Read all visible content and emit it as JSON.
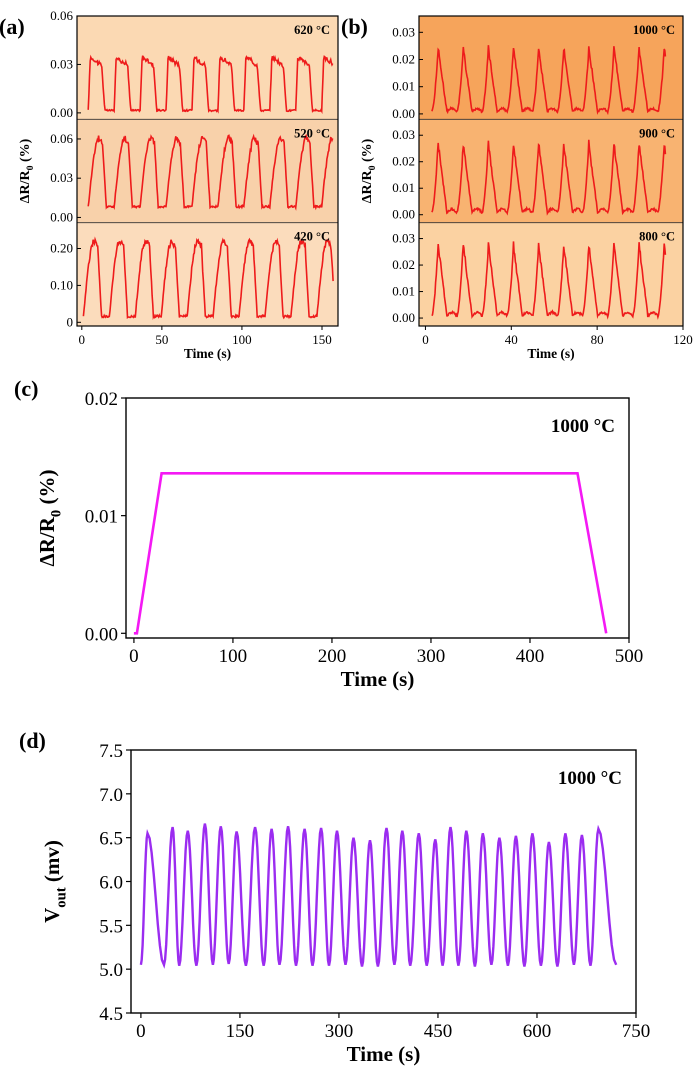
{
  "chart_data": [
    {
      "panel_label": "(a)",
      "type": "line",
      "xlabel": "Time (s)",
      "ylabel": "ΔR/R0 (%)",
      "xlim": [
        -3,
        160
      ],
      "x_ticks": [
        0,
        50,
        100,
        150
      ],
      "line_color": "#ee1b1b",
      "subplots": [
        {
          "annotation": "620 °C",
          "bg": "#fbd9b3",
          "ylim": [
            -0.004,
            0.06
          ],
          "y_ticks": [
            0.0,
            0.03,
            0.06
          ],
          "y_tick_labels": [
            "0.00",
            "0.03",
            "0.06"
          ],
          "wave": {
            "start": 4,
            "end": 157,
            "period": 16.2,
            "baseline": 0.0015,
            "peak": 0.036,
            "shape": "pulse"
          }
        },
        {
          "annotation": "520 °C",
          "bg": "#f8d1aa",
          "ylim": [
            -0.004,
            0.075
          ],
          "y_ticks": [
            0.0,
            0.03,
            0.06
          ],
          "y_tick_labels": [
            "0.00",
            "0.03",
            "0.06"
          ],
          "wave": {
            "start": 4,
            "end": 157,
            "period": 16.2,
            "baseline": 0.008,
            "peak": 0.063,
            "shape": "round"
          }
        },
        {
          "annotation": "420 °C",
          "bg": "#fbdcbc",
          "ylim": [
            -0.01,
            0.27
          ],
          "y_ticks": [
            0,
            0.1,
            0.2
          ],
          "y_tick_labels": [
            "0",
            "0.10",
            "0.20"
          ],
          "wave": {
            "start": 1,
            "end": 157,
            "period": 16.2,
            "baseline": 0.015,
            "peak": 0.23,
            "shape": "round"
          }
        }
      ]
    },
    {
      "panel_label": "(b)",
      "type": "line",
      "xlabel": "Time (s)",
      "ylabel": "ΔR/R0 (%)",
      "xlim": [
        -3,
        120
      ],
      "x_ticks": [
        0,
        40,
        80,
        120
      ],
      "line_color": "#ee1b1b",
      "subplots": [
        {
          "annotation": "1000 °C",
          "bg": "#f6a45b",
          "ylim": [
            -0.002,
            0.036
          ],
          "y_ticks": [
            0.0,
            0.01,
            0.02,
            0.03
          ],
          "y_tick_labels": [
            "0.00",
            "0.01",
            "0.02",
            "0.03"
          ],
          "wave": {
            "start": 3,
            "end": 112,
            "period": 11.7,
            "baseline": 0.0008,
            "peak": 0.025,
            "shape": "sharp"
          }
        },
        {
          "annotation": "900 °C",
          "bg": "#f8b371",
          "ylim": [
            -0.003,
            0.036
          ],
          "y_ticks": [
            0.0,
            0.01,
            0.02,
            0.03
          ],
          "y_tick_labels": [
            "0.00",
            "0.01",
            "0.02",
            "0.03"
          ],
          "wave": {
            "start": 3,
            "end": 112,
            "period": 11.7,
            "baseline": 0.0008,
            "peak": 0.028,
            "shape": "sharp"
          }
        },
        {
          "annotation": "800 °C",
          "bg": "#fbd2a2",
          "ylim": [
            -0.003,
            0.036
          ],
          "y_ticks": [
            0.0,
            0.01,
            0.02,
            0.03
          ],
          "y_tick_labels": [
            "0.00",
            "0.01",
            "0.02",
            "0.03"
          ],
          "wave": {
            "start": 3,
            "end": 112,
            "period": 11.7,
            "baseline": 0.0008,
            "peak": 0.029,
            "shape": "sharp"
          }
        }
      ]
    },
    {
      "panel_label": "(c)",
      "type": "line",
      "annotation": "1000 °C",
      "xlabel": "Time (s)",
      "ylabel": "ΔR/R0 (%)",
      "xlim": [
        -8,
        500
      ],
      "ylim": [
        -0.0004,
        0.02
      ],
      "x_ticks": [
        0,
        100,
        200,
        300,
        400,
        500
      ],
      "y_ticks": [
        0.0,
        0.01,
        0.02
      ],
      "y_tick_labels": [
        "0.00",
        "0.01",
        "0.02"
      ],
      "line_color": "#f419f4",
      "x": [
        0,
        3,
        28,
        448,
        477
      ],
      "y": [
        0.0,
        0.0,
        0.0136,
        0.0136,
        0.0
      ]
    },
    {
      "panel_label": "(d)",
      "type": "line",
      "annotation": "1000 °C",
      "xlabel": "Time (s)",
      "ylabel": "Vout (mv)",
      "xlim": [
        -15,
        750
      ],
      "ylim": [
        4.5,
        7.5
      ],
      "x_ticks": [
        0,
        150,
        300,
        450,
        600,
        750
      ],
      "y_ticks": [
        4.5,
        5.0,
        5.5,
        6.0,
        6.5,
        7.0,
        7.5
      ],
      "y_tick_labels": [
        "4.5",
        "5.0",
        "5.5",
        "6.0",
        "6.5",
        "7.0",
        "7.5"
      ],
      "line_color": "#9b2cf0",
      "peaks": [
        [
          10,
          6.55
        ],
        [
          48,
          6.62
        ],
        [
          71,
          6.58
        ],
        [
          97,
          6.66
        ],
        [
          121,
          6.63
        ],
        [
          145,
          6.57
        ],
        [
          173,
          6.62
        ],
        [
          198,
          6.6
        ],
        [
          223,
          6.63
        ],
        [
          248,
          6.6
        ],
        [
          273,
          6.61
        ],
        [
          297,
          6.58
        ],
        [
          322,
          6.5
        ],
        [
          347,
          6.47
        ],
        [
          372,
          6.61
        ],
        [
          396,
          6.58
        ],
        [
          421,
          6.55
        ],
        [
          446,
          6.48
        ],
        [
          469,
          6.62
        ],
        [
          493,
          6.58
        ],
        [
          518,
          6.55
        ],
        [
          543,
          6.5
        ],
        [
          568,
          6.52
        ],
        [
          593,
          6.55
        ],
        [
          618,
          6.45
        ],
        [
          643,
          6.55
        ],
        [
          668,
          6.53
        ],
        [
          693,
          6.6
        ]
      ],
      "troughs": [
        [
          0,
          5.05
        ],
        [
          35,
          5.05
        ],
        [
          58,
          5.04
        ],
        [
          84,
          5.04
        ],
        [
          109,
          5.05
        ],
        [
          133,
          5.06
        ],
        [
          159,
          5.04
        ],
        [
          186,
          5.04
        ],
        [
          210,
          5.05
        ],
        [
          235,
          5.04
        ],
        [
          260,
          5.04
        ],
        [
          285,
          5.04
        ],
        [
          310,
          5.05
        ],
        [
          335,
          5.03
        ],
        [
          359,
          5.03
        ],
        [
          384,
          5.05
        ],
        [
          408,
          5.04
        ],
        [
          433,
          5.04
        ],
        [
          457,
          5.04
        ],
        [
          481,
          5.04
        ],
        [
          506,
          5.03
        ],
        [
          531,
          5.05
        ],
        [
          556,
          5.04
        ],
        [
          581,
          5.03
        ],
        [
          606,
          5.04
        ],
        [
          631,
          5.03
        ],
        [
          656,
          5.05
        ],
        [
          681,
          5.04
        ],
        [
          720,
          5.05
        ]
      ]
    }
  ]
}
